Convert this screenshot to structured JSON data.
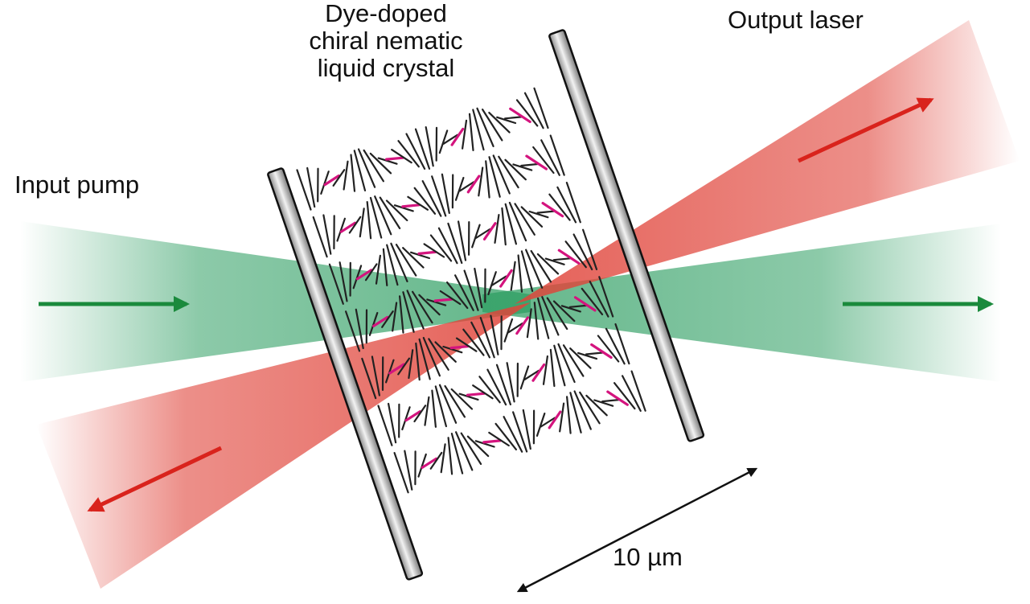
{
  "labels": {
    "crystal_line1": "Dye-doped",
    "crystal_line2": "chiral nematic",
    "crystal_line3": "liquid crystal",
    "output": "Output laser",
    "input": "Input pump",
    "scale": "10 µm"
  },
  "colors": {
    "pump": "#2e9e62",
    "pump_arrow": "#1a8a3c",
    "laser": "#e0443a",
    "laser_arrow": "#d9231c",
    "helix": "#222222",
    "dye": "#d4147e",
    "plate": "#b8b8b8"
  },
  "icons": {
    "pump_arrow_in": "right-arrow-icon",
    "pump_arrow_out": "right-arrow-icon",
    "laser_arrow_out": "up-right-arrow-icon",
    "laser_arrow_back": "down-left-arrow-icon",
    "scale_bar": "double-arrow-icon"
  }
}
